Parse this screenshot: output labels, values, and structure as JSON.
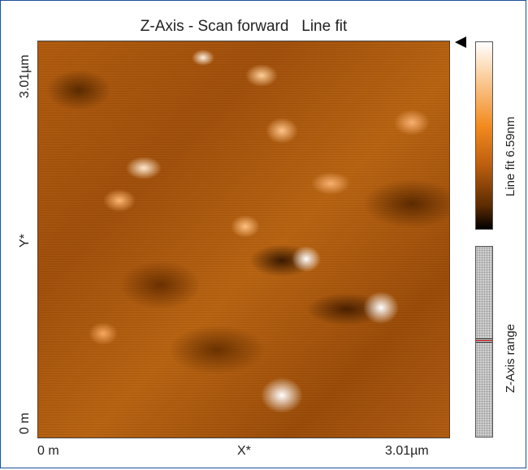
{
  "window": {
    "title": "Z-Axis - Scan forward   Line fit"
  },
  "image": {
    "y_axis": {
      "max": "3.01µm",
      "label": "Y*",
      "min": "0 m"
    },
    "x_axis": {
      "min": "0 m",
      "label": "X*",
      "max": "3.01µm"
    }
  },
  "colorbar": {
    "label": "Line fit 6.59nm"
  },
  "range": {
    "label": "Z-Axis range"
  },
  "colors": {
    "accent": "#f28a1e",
    "frame": "#1f4e9a"
  }
}
